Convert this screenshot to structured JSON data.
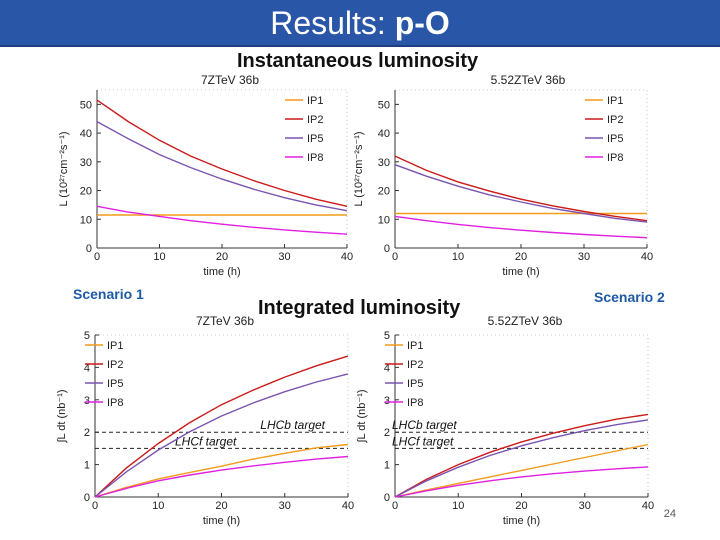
{
  "slide": {
    "title_prefix": "Results: ",
    "title_bold": "p-O",
    "heading_instantaneous": "Instantaneous luminosity",
    "heading_integrated": "Integrated luminosity",
    "scenario1": "Scenario 1",
    "scenario2": "Scenario 2",
    "page_number": "24"
  },
  "colors": {
    "title_bar": "#2a56a8",
    "IP1": "#f29a1a",
    "IP2": "#cc1a1a",
    "IP5": "#7a55b0",
    "IP8": "#e020e0"
  },
  "chart_data": [
    {
      "id": "inst1",
      "type": "line",
      "title": "7ZTeV 36b",
      "xlabel": "time (h)",
      "ylabel": "L (10²⁷cm⁻²s⁻¹)",
      "xlim": [
        0,
        40
      ],
      "ylim": [
        0,
        55
      ],
      "xticks": [
        0,
        10,
        20,
        30,
        40
      ],
      "yticks": [
        0,
        10,
        20,
        30,
        40,
        50
      ],
      "x": [
        0,
        5,
        10,
        15,
        20,
        25,
        30,
        35,
        40
      ],
      "series": [
        {
          "name": "IP1",
          "values": [
            11.5,
            11.5,
            11.5,
            11.5,
            11.5,
            11.5,
            11.5,
            11.5,
            11.5
          ]
        },
        {
          "name": "IP2",
          "values": [
            51.5,
            44,
            37.5,
            32,
            27.5,
            23.5,
            20,
            17,
            14.5
          ]
        },
        {
          "name": "IP5",
          "values": [
            44,
            38,
            32.5,
            28,
            24,
            20.5,
            17.5,
            15,
            13
          ]
        },
        {
          "name": "IP8",
          "values": [
            14.5,
            12.5,
            11,
            9.5,
            8.3,
            7.2,
            6.3,
            5.5,
            4.8
          ]
        }
      ],
      "annotations": []
    },
    {
      "id": "inst2",
      "type": "line",
      "title": "5.52ZTeV 36b",
      "xlabel": "time (h)",
      "ylabel": "L (10²⁷cm⁻²s⁻¹)",
      "xlim": [
        0,
        40
      ],
      "ylim": [
        0,
        55
      ],
      "xticks": [
        0,
        10,
        20,
        30,
        40
      ],
      "yticks": [
        0,
        10,
        20,
        30,
        40,
        50
      ],
      "x": [
        0,
        5,
        10,
        15,
        20,
        25,
        30,
        35,
        40
      ],
      "series": [
        {
          "name": "IP1",
          "values": [
            12,
            12,
            12,
            12,
            12,
            12,
            12,
            12,
            12
          ]
        },
        {
          "name": "IP2",
          "values": [
            32,
            27,
            23,
            19.8,
            17,
            14.7,
            12.7,
            11,
            9.5
          ]
        },
        {
          "name": "IP5",
          "values": [
            29,
            25,
            21.5,
            18.5,
            16,
            13.8,
            12,
            10.3,
            9
          ]
        },
        {
          "name": "IP8",
          "values": [
            11,
            9.5,
            8.2,
            7.1,
            6.2,
            5.4,
            4.7,
            4.1,
            3.6
          ]
        }
      ],
      "annotations": []
    },
    {
      "id": "int1",
      "type": "line",
      "title": "7ZTeV 36b",
      "xlabel": "time (h)",
      "ylabel": "∫L dt (nb⁻¹)",
      "xlim": [
        0,
        40
      ],
      "ylim": [
        0,
        5
      ],
      "xticks": [
        0,
        10,
        20,
        30,
        40
      ],
      "yticks": [
        0,
        1,
        2,
        3,
        4,
        5
      ],
      "x": [
        0,
        5,
        10,
        15,
        20,
        25,
        30,
        35,
        40
      ],
      "series": [
        {
          "name": "IP1",
          "values": [
            0,
            0.3,
            0.56,
            0.76,
            0.95,
            1.17,
            1.35,
            1.52,
            1.62
          ]
        },
        {
          "name": "IP2",
          "values": [
            0,
            0.9,
            1.65,
            2.3,
            2.85,
            3.3,
            3.7,
            4.05,
            4.35
          ]
        },
        {
          "name": "IP5",
          "values": [
            0,
            0.78,
            1.45,
            2.02,
            2.5,
            2.9,
            3.25,
            3.55,
            3.8
          ]
        },
        {
          "name": "IP8",
          "values": [
            0,
            0.27,
            0.5,
            0.68,
            0.83,
            0.96,
            1.07,
            1.17,
            1.25
          ]
        }
      ],
      "annotations": [
        {
          "text": "LHCb target",
          "y": 2.0
        },
        {
          "text": "LHCf target",
          "y": 1.5
        }
      ]
    },
    {
      "id": "int2",
      "type": "line",
      "title": "5.52ZTeV 36b",
      "xlabel": "time (h)",
      "ylabel": "∫L dt (nb⁻¹)",
      "xlim": [
        0,
        40
      ],
      "ylim": [
        0,
        5
      ],
      "xticks": [
        0,
        10,
        20,
        30,
        40
      ],
      "yticks": [
        0,
        1,
        2,
        3,
        4,
        5
      ],
      "x": [
        0,
        5,
        10,
        15,
        20,
        25,
        30,
        35,
        40
      ],
      "series": [
        {
          "name": "IP1",
          "values": [
            0,
            0.22,
            0.42,
            0.62,
            0.82,
            1.02,
            1.22,
            1.42,
            1.62
          ]
        },
        {
          "name": "IP2",
          "values": [
            0,
            0.55,
            1.0,
            1.38,
            1.7,
            1.97,
            2.2,
            2.4,
            2.55
          ]
        },
        {
          "name": "IP5",
          "values": [
            0,
            0.5,
            0.92,
            1.28,
            1.58,
            1.83,
            2.05,
            2.23,
            2.38
          ]
        },
        {
          "name": "IP8",
          "values": [
            0,
            0.19,
            0.36,
            0.5,
            0.62,
            0.72,
            0.8,
            0.87,
            0.93
          ]
        }
      ],
      "annotations": [
        {
          "text": "LHCb target",
          "y": 2.0
        },
        {
          "text": "LHCf target",
          "y": 1.5
        }
      ]
    }
  ]
}
